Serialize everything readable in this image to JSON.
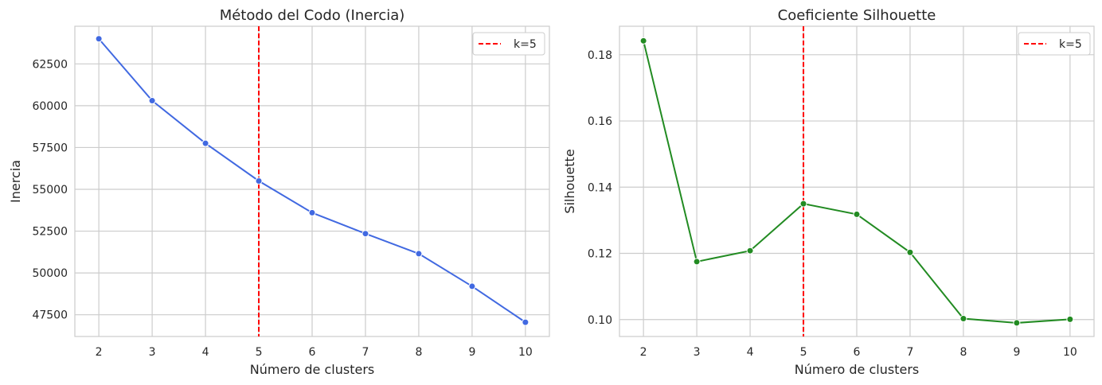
{
  "colors": {
    "grid": "#cccccc",
    "spine": "#cccccc",
    "vline": "#ff0000",
    "text": "#262626"
  },
  "chart_data": [
    {
      "type": "line",
      "title": "Método del Codo (Inercia)",
      "xlabel": "Número de clusters",
      "ylabel": "Inercia",
      "x": [
        2,
        3,
        4,
        5,
        6,
        7,
        8,
        9,
        10
      ],
      "series": [
        {
          "values": [
            64000,
            60300,
            57750,
            55500,
            53600,
            52350,
            51150,
            49200,
            47050
          ],
          "color": "#4169e1"
        }
      ],
      "xlim": [
        1.55,
        10.45
      ],
      "ylim": [
        46200,
        64750
      ],
      "xticks": [
        2,
        3,
        4,
        5,
        6,
        7,
        8,
        9,
        10
      ],
      "yticks": [
        47500,
        50000,
        52500,
        55000,
        57500,
        60000,
        62500
      ],
      "vline": {
        "x": 5,
        "label": "k=5"
      },
      "legend": "top-right",
      "grid": true
    },
    {
      "type": "line",
      "title": "Coeficiente Silhouette",
      "xlabel": "Número de clusters",
      "ylabel": "Silhouette",
      "x": [
        2,
        3,
        4,
        5,
        6,
        7,
        8,
        9,
        10
      ],
      "series": [
        {
          "values": [
            0.1842,
            0.1175,
            0.1208,
            0.135,
            0.1318,
            0.1203,
            0.1003,
            0.099,
            0.1001
          ],
          "color": "#228b22"
        }
      ],
      "xlim": [
        1.55,
        10.45
      ],
      "ylim": [
        0.0949,
        0.1886
      ],
      "xticks": [
        2,
        3,
        4,
        5,
        6,
        7,
        8,
        9,
        10
      ],
      "yticks": [
        "0.10",
        "0.12",
        "0.14",
        "0.16",
        "0.18"
      ],
      "vline": {
        "x": 5,
        "label": "k=5"
      },
      "legend": "top-right",
      "grid": true
    }
  ]
}
